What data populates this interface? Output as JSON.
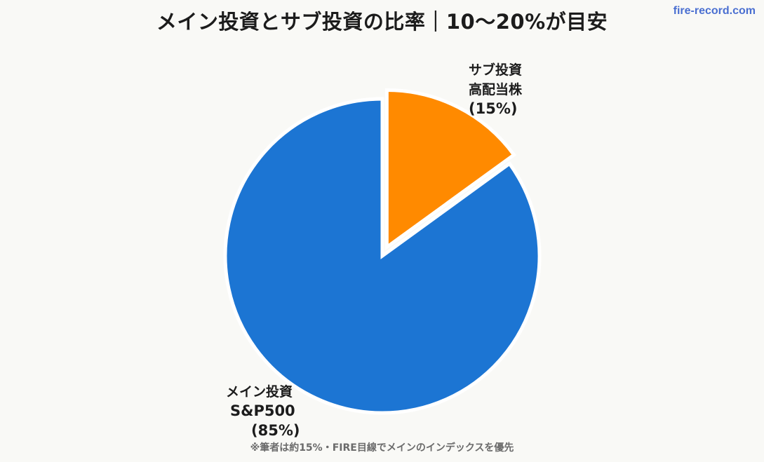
{
  "title": "メイン投資とサブ投資の比率｜10〜20%が目安",
  "watermark": "fire-record.com",
  "footnote": "※筆者は約15%・FIRE目線でメインのインデックスを優先",
  "colors": {
    "main": "#1c75d3",
    "sub": "#ff8a00",
    "background": "#f9f9f6"
  },
  "chart_data": {
    "type": "pie",
    "start_angle_deg": 0,
    "direction": "clockwise",
    "slices": [
      {
        "value": 15,
        "color": "#ff8a00",
        "exploded": true,
        "label_lines": [
          "サブ投資",
          "高配当株",
          "(15%)"
        ]
      },
      {
        "value": 85,
        "color": "#1c75d3",
        "exploded": false,
        "label_lines": [
          "メイン投資",
          "S&P500",
          "(85%)"
        ]
      }
    ]
  }
}
